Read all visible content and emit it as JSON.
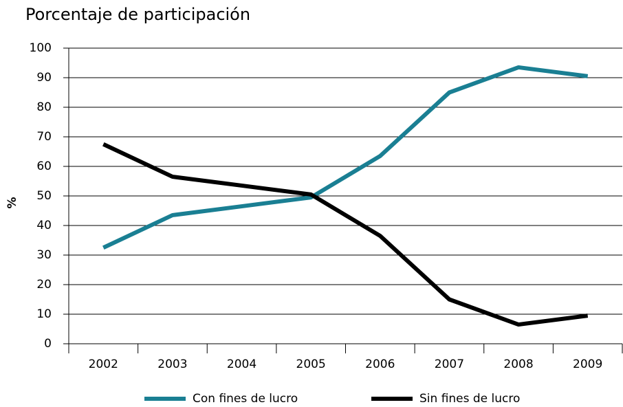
{
  "chart_data": {
    "type": "line",
    "title": "Porcentaje de participación",
    "y_label": "%",
    "categories": [
      "2002",
      "2003",
      "2004",
      "2005",
      "2006",
      "2007",
      "2008",
      "2009"
    ],
    "series": [
      {
        "name": "Con fines de lucro",
        "color": "#1a7f93",
        "values": [
          32.5,
          43.5,
          46.5,
          49.5,
          63.5,
          85,
          93.5,
          90.5
        ]
      },
      {
        "name": "Sin fines de lucro",
        "color": "#000000",
        "values": [
          67.5,
          56.5,
          53.5,
          50.5,
          36.5,
          15,
          6.5,
          9.5
        ]
      }
    ],
    "ylim": [
      0,
      100
    ],
    "yticks": [
      0,
      10,
      20,
      30,
      40,
      50,
      60,
      70,
      80,
      90,
      100
    ],
    "grid": true
  }
}
